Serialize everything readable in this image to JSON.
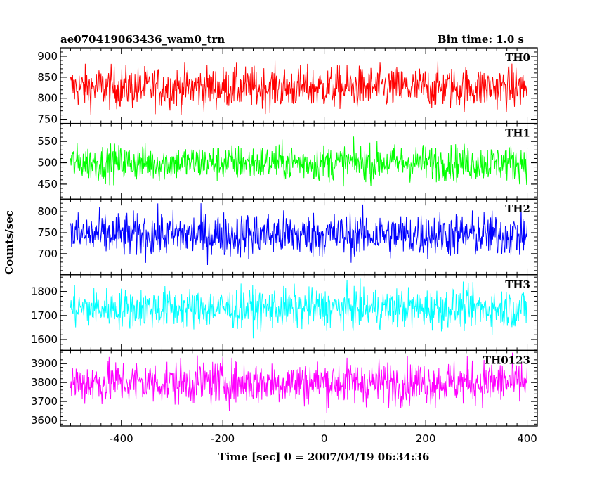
{
  "header": {
    "title": "ae070419063436_wam0_trn",
    "bin_time": "Bin time: 1.0 s"
  },
  "axes": {
    "xlabel": "Time [sec] 0 = 2007/04/19 06:34:36",
    "ylabel": "Counts/sec"
  },
  "chart_data": {
    "type": "line",
    "title": "ae070419063436_wam0_trn",
    "subtitle": "Bin time: 1.0 s",
    "xlabel": "Time [sec] 0 = 2007/04/19 06:34:36",
    "ylabel": "Counts/sec",
    "xlim": [
      -520,
      420
    ],
    "x_range_data": [
      -500,
      400
    ],
    "x_ticks": [
      -400,
      -200,
      0,
      200,
      400
    ],
    "series": [
      {
        "name": "TH0",
        "color": "#ff0000",
        "ylim": [
          740,
          920
        ],
        "y_ticks": [
          750,
          800,
          850,
          900
        ],
        "mean": 825,
        "spread": 45
      },
      {
        "name": "TH1",
        "color": "#00ff00",
        "ylim": [
          415,
          592
        ],
        "y_ticks": [
          450,
          500,
          550
        ],
        "mean": 500,
        "spread": 38
      },
      {
        "name": "TH2",
        "color": "#0000ff",
        "ylim": [
          650,
          830
        ],
        "y_ticks": [
          700,
          750,
          800
        ],
        "mean": 745,
        "spread": 48
      },
      {
        "name": "TH3",
        "color": "#00ffff",
        "ylim": [
          1555,
          1870
        ],
        "y_ticks": [
          1600,
          1700,
          1800
        ],
        "mean": 1730,
        "spread": 75
      },
      {
        "name": "TH0123",
        "color": "#ff00ff",
        "ylim": [
          3570,
          3970
        ],
        "y_ticks": [
          3600,
          3700,
          3800,
          3900
        ],
        "mean": 3800,
        "spread": 105
      }
    ]
  }
}
